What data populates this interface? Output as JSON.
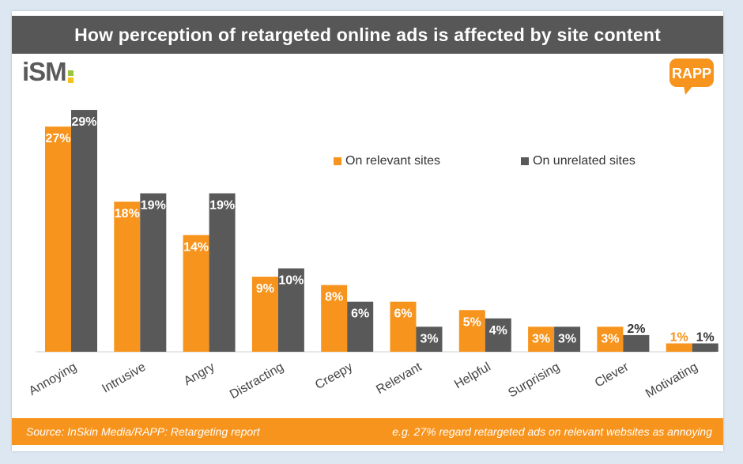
{
  "header": {
    "title": "How perception of retargeted online ads is affected by site content"
  },
  "logos": {
    "left": "iSM",
    "right": "RAPP"
  },
  "colors": {
    "relevant": "#f7941d",
    "unrelated": "#595959",
    "title_bar": "#575757",
    "footer_bar": "#f7941d"
  },
  "footer": {
    "source": "Source: InSkin Media/RAPP: Retargeting report",
    "note": "e.g. 27% regard retargeted ads on relevant websites as annoying"
  },
  "chart_data": {
    "type": "bar",
    "categories": [
      "Annoying",
      "Intrusive",
      "Angry",
      "Distracting",
      "Creepy",
      "Relevant",
      "Helpful",
      "Surprising",
      "Clever",
      "Motivating"
    ],
    "series": [
      {
        "name": "On relevant sites",
        "values": [
          27,
          18,
          14,
          9,
          8,
          6,
          5,
          3,
          3,
          1
        ]
      },
      {
        "name": "On unrelated sites",
        "values": [
          29,
          19,
          19,
          10,
          6,
          3,
          4,
          3,
          2,
          1
        ]
      }
    ],
    "value_suffix": "%",
    "legend_position": "upper-right",
    "ylim": [
      0,
      29
    ],
    "grid": false
  }
}
